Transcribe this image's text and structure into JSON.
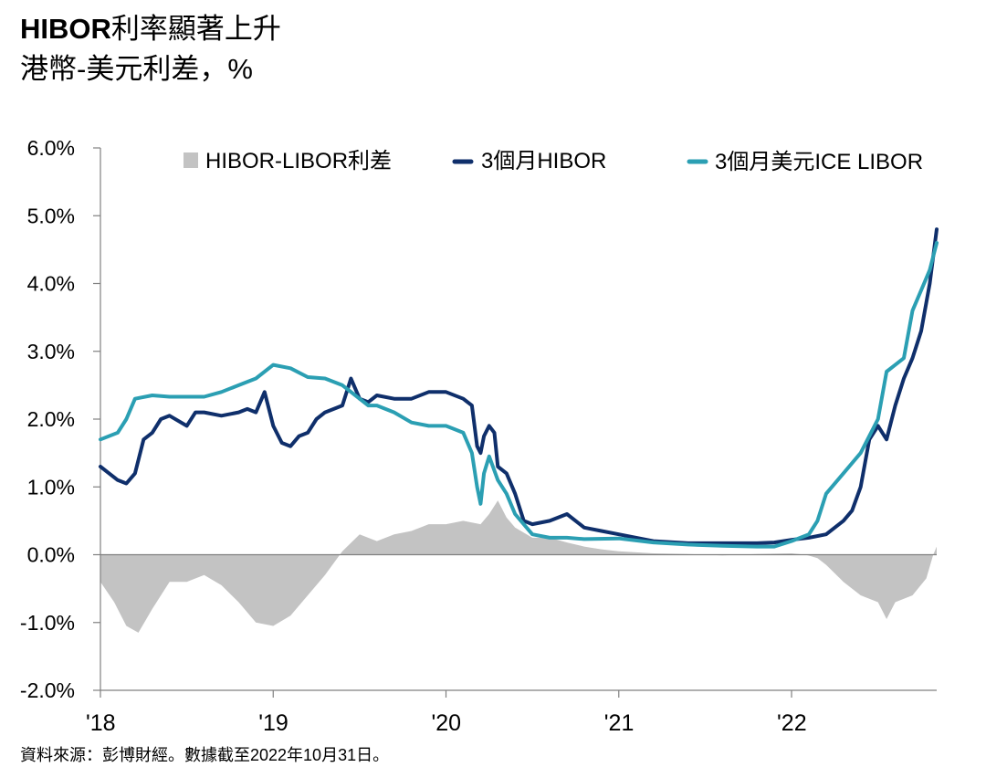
{
  "header": {
    "title_bold": "HIBOR",
    "title_rest": "利率顯著上升",
    "subtitle": "港幣-美元利差，%"
  },
  "footer": {
    "source": "資料來源：彭博財經。數據截至2022年10月31日。"
  },
  "colors": {
    "hibor": "#0f2f6b",
    "libor": "#2b9fb3",
    "spread": "#c3c3c3",
    "axis": "#808080"
  },
  "chart_data": {
    "type": "line",
    "title": "HIBOR利率顯著上升",
    "subtitle": "港幣-美元利差，%",
    "xlabel": "",
    "ylabel": "",
    "x_range": [
      2018.0,
      2022.84
    ],
    "ylim": [
      -2.0,
      6.0
    ],
    "y_ticks": [
      6.0,
      5.0,
      4.0,
      3.0,
      2.0,
      1.0,
      0.0,
      -1.0,
      -2.0
    ],
    "y_tick_labels": [
      "6.0%",
      "5.0%",
      "4.0%",
      "3.0%",
      "2.0%",
      "1.0%",
      "0.0%",
      "-1.0%",
      "-2.0%"
    ],
    "x_ticks": [
      2018,
      2019,
      2020,
      2021,
      2022
    ],
    "x_tick_labels": [
      "'18",
      "'19",
      "'20",
      "'21",
      "'22"
    ],
    "grid": false,
    "legend_position": "top",
    "series": [
      {
        "name": "HIBOR-LIBOR利差",
        "kind": "area",
        "x": [
          2018.0,
          2018.08,
          2018.15,
          2018.22,
          2018.3,
          2018.4,
          2018.5,
          2018.6,
          2018.7,
          2018.8,
          2018.9,
          2019.0,
          2019.1,
          2019.2,
          2019.3,
          2019.4,
          2019.5,
          2019.6,
          2019.7,
          2019.8,
          2019.9,
          2020.0,
          2020.1,
          2020.2,
          2020.25,
          2020.3,
          2020.35,
          2020.4,
          2020.5,
          2020.6,
          2020.7,
          2020.8,
          2020.9,
          2021.0,
          2021.2,
          2021.4,
          2021.6,
          2021.8,
          2022.0,
          2022.08,
          2022.15,
          2022.2,
          2022.3,
          2022.4,
          2022.5,
          2022.55,
          2022.6,
          2022.7,
          2022.78,
          2022.82,
          2022.84
        ],
        "values": [
          -0.4,
          -0.7,
          -1.05,
          -1.15,
          -0.8,
          -0.4,
          -0.4,
          -0.3,
          -0.45,
          -0.7,
          -1.0,
          -1.05,
          -0.9,
          -0.6,
          -0.3,
          0.05,
          0.3,
          0.2,
          0.3,
          0.35,
          0.45,
          0.45,
          0.5,
          0.45,
          0.6,
          0.8,
          0.55,
          0.4,
          0.25,
          0.25,
          0.18,
          0.12,
          0.08,
          0.05,
          0.02,
          0.01,
          -0.01,
          0.01,
          0.02,
          0.0,
          -0.05,
          -0.15,
          -0.4,
          -0.6,
          -0.7,
          -0.95,
          -0.7,
          -0.6,
          -0.35,
          0.0,
          0.12
        ]
      },
      {
        "name": "3個月HIBOR",
        "kind": "line",
        "x": [
          2018.0,
          2018.05,
          2018.1,
          2018.15,
          2018.2,
          2018.25,
          2018.3,
          2018.35,
          2018.4,
          2018.5,
          2018.55,
          2018.6,
          2018.7,
          2018.8,
          2018.85,
          2018.9,
          2018.95,
          2019.0,
          2019.05,
          2019.1,
          2019.15,
          2019.2,
          2019.25,
          2019.3,
          2019.4,
          2019.45,
          2019.5,
          2019.55,
          2019.6,
          2019.7,
          2019.8,
          2019.9,
          2020.0,
          2020.1,
          2020.15,
          2020.18,
          2020.2,
          2020.22,
          2020.25,
          2020.28,
          2020.3,
          2020.35,
          2020.4,
          2020.45,
          2020.5,
          2020.6,
          2020.7,
          2020.8,
          2020.9,
          2021.0,
          2021.2,
          2021.4,
          2021.6,
          2021.8,
          2021.9,
          2022.0,
          2022.1,
          2022.2,
          2022.3,
          2022.35,
          2022.4,
          2022.45,
          2022.5,
          2022.55,
          2022.6,
          2022.65,
          2022.7,
          2022.75,
          2022.8,
          2022.84
        ],
        "values": [
          1.3,
          1.2,
          1.1,
          1.05,
          1.2,
          1.7,
          1.8,
          2.0,
          2.05,
          1.9,
          2.1,
          2.1,
          2.05,
          2.1,
          2.15,
          2.1,
          2.4,
          1.9,
          1.65,
          1.6,
          1.75,
          1.8,
          2.0,
          2.1,
          2.2,
          2.6,
          2.3,
          2.25,
          2.35,
          2.3,
          2.3,
          2.4,
          2.4,
          2.3,
          2.2,
          1.6,
          1.5,
          1.75,
          1.9,
          1.8,
          1.3,
          1.2,
          0.9,
          0.5,
          0.45,
          0.5,
          0.6,
          0.4,
          0.35,
          0.3,
          0.2,
          0.17,
          0.17,
          0.17,
          0.18,
          0.22,
          0.25,
          0.3,
          0.5,
          0.65,
          1.0,
          1.7,
          1.9,
          1.7,
          2.2,
          2.6,
          2.9,
          3.3,
          4.0,
          4.8
        ]
      },
      {
        "name": "3個月美元ICE LIBOR",
        "kind": "line",
        "x": [
          2018.0,
          2018.1,
          2018.15,
          2018.2,
          2018.3,
          2018.4,
          2018.5,
          2018.6,
          2018.7,
          2018.8,
          2018.9,
          2019.0,
          2019.1,
          2019.2,
          2019.3,
          2019.4,
          2019.5,
          2019.55,
          2019.6,
          2019.7,
          2019.8,
          2019.9,
          2020.0,
          2020.05,
          2020.1,
          2020.15,
          2020.18,
          2020.2,
          2020.22,
          2020.25,
          2020.3,
          2020.35,
          2020.4,
          2020.5,
          2020.6,
          2020.7,
          2020.8,
          2021.0,
          2021.2,
          2021.4,
          2021.6,
          2021.8,
          2021.9,
          2022.0,
          2022.1,
          2022.15,
          2022.2,
          2022.3,
          2022.4,
          2022.45,
          2022.5,
          2022.55,
          2022.6,
          2022.65,
          2022.7,
          2022.75,
          2022.8,
          2022.84
        ],
        "values": [
          1.7,
          1.8,
          2.0,
          2.3,
          2.35,
          2.33,
          2.33,
          2.33,
          2.4,
          2.5,
          2.6,
          2.8,
          2.75,
          2.62,
          2.6,
          2.5,
          2.3,
          2.2,
          2.2,
          2.1,
          1.95,
          1.9,
          1.9,
          1.85,
          1.8,
          1.5,
          1.0,
          0.75,
          1.2,
          1.45,
          1.1,
          0.9,
          0.6,
          0.3,
          0.25,
          0.25,
          0.23,
          0.24,
          0.18,
          0.15,
          0.13,
          0.12,
          0.12,
          0.2,
          0.3,
          0.5,
          0.9,
          1.2,
          1.5,
          1.75,
          2.0,
          2.7,
          2.8,
          2.9,
          3.6,
          3.9,
          4.2,
          4.6
        ]
      }
    ]
  }
}
